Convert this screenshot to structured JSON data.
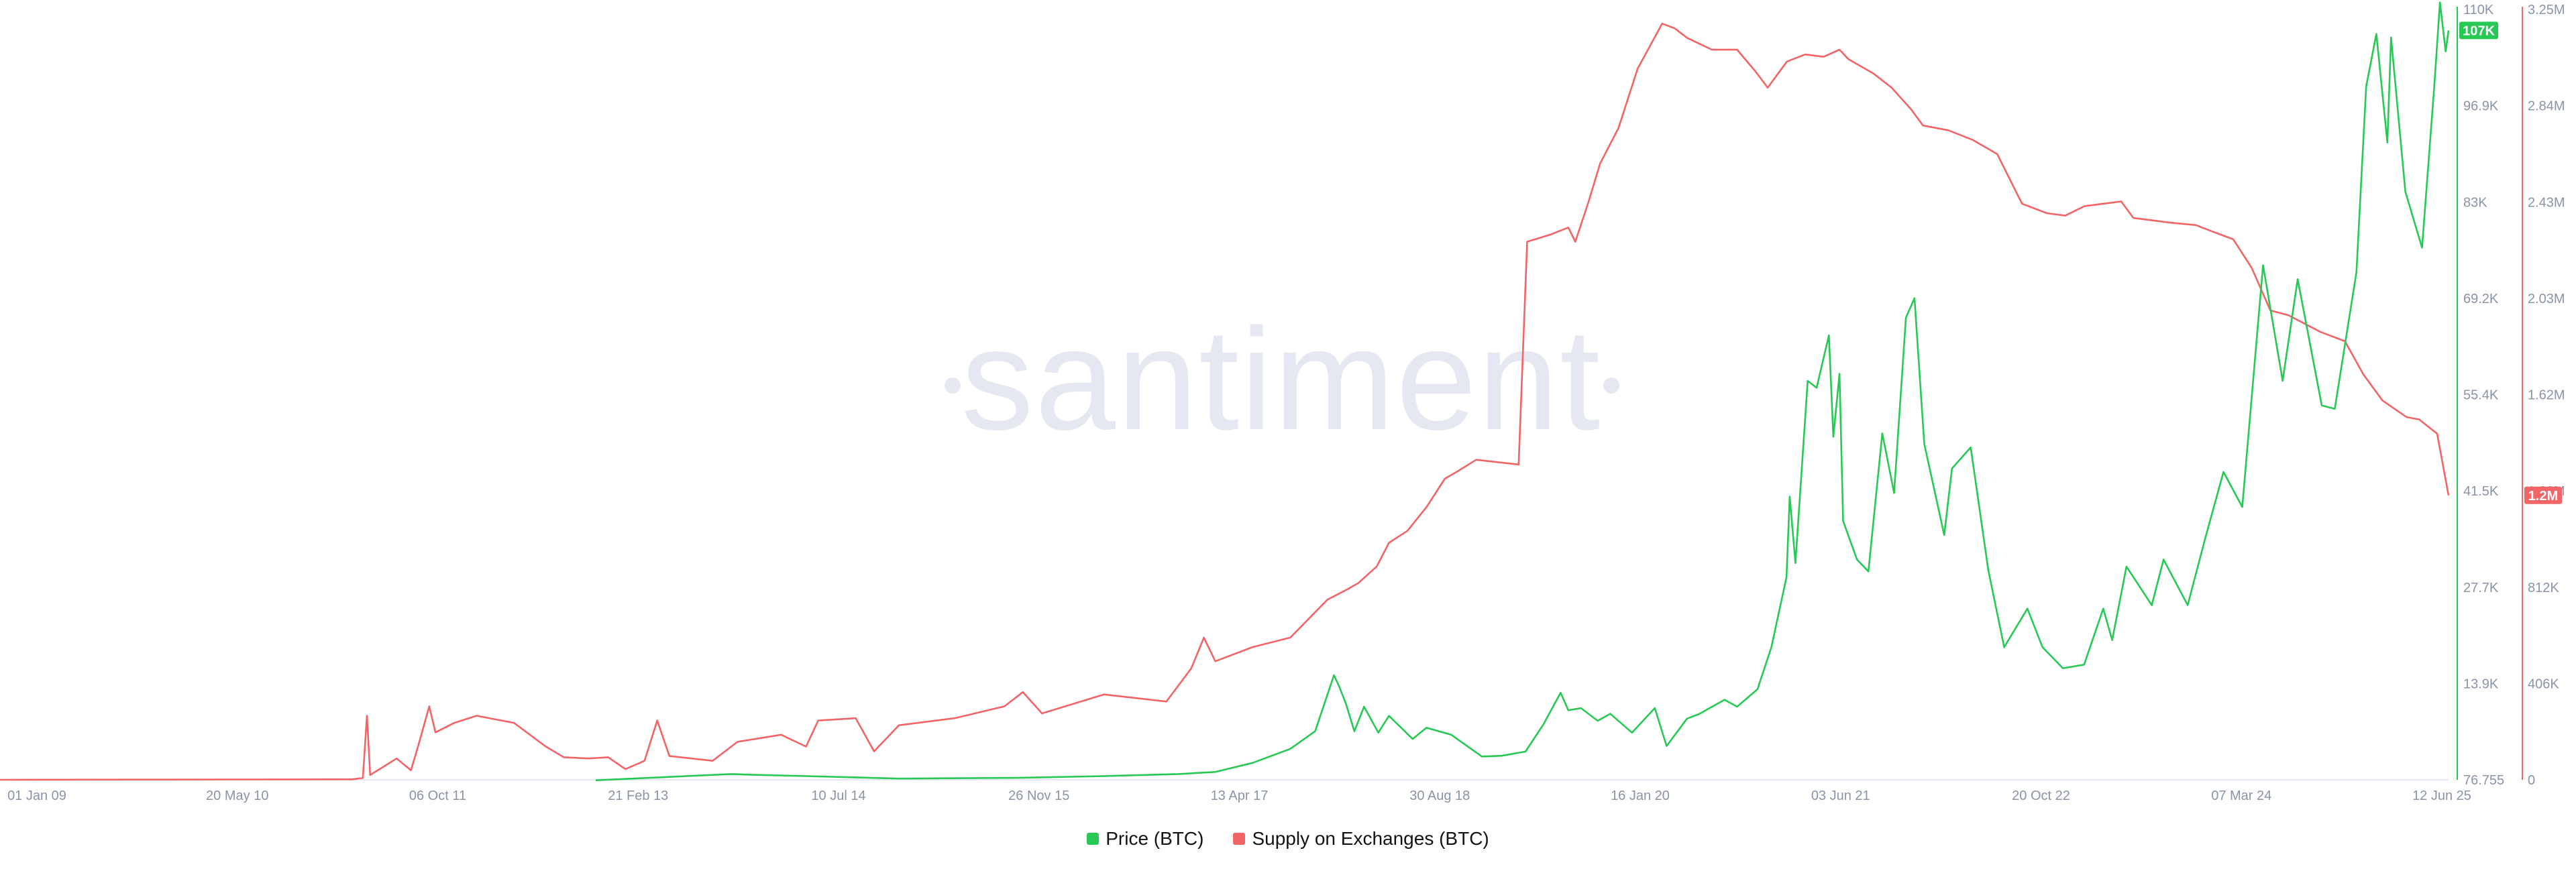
{
  "colors": {
    "price": "#26c953",
    "supply": "#f26466",
    "axis_text": "#8a94a6",
    "watermark": "#e6e8f1"
  },
  "watermark": {
    "text": "santiment"
  },
  "legend": {
    "price": {
      "label": "Price (BTC)",
      "color": "#26c953"
    },
    "supply": {
      "label": "Supply on Exchanges (BTC)",
      "color": "#f26466"
    }
  },
  "chart_data": {
    "type": "line",
    "title": "",
    "grid": false,
    "legend_position": "bottom-center",
    "x_ticks": [
      "01 Jan 09",
      "20 May 10",
      "06 Oct 11",
      "21 Feb 13",
      "10 Jul 14",
      "26 Nov 15",
      "13 Apr 17",
      "30 Aug 18",
      "16 Jan 20",
      "03 Jun 21",
      "20 Oct 22",
      "07 Mar 24",
      "12 Jun 25"
    ],
    "y_left": {
      "label": "Price (BTC)",
      "ticks": [
        "110K",
        "96.9K",
        "83K",
        "69.2K",
        "55.4K",
        "41.5K",
        "27.7K",
        "13.9K",
        "76.755"
      ],
      "range": [
        76.755,
        110000
      ],
      "current_label": "107K"
    },
    "y_right": {
      "label": "Supply on Exchanges (BTC)",
      "ticks": [
        "3.25M",
        "2.84M",
        "2.43M",
        "2.03M",
        "1.62M",
        "1.22M",
        "812K",
        "406K",
        "0"
      ],
      "range": [
        0,
        3250000
      ],
      "current_label": "1.2M"
    },
    "series": [
      {
        "name": "Price (BTC)",
        "axis": "left",
        "points": [
          [
            "2013-01-01",
            13
          ],
          [
            "2013-12-01",
            900
          ],
          [
            "2014-01-15",
            800
          ],
          [
            "2014-06-01",
            600
          ],
          [
            "2015-01-15",
            250
          ],
          [
            "2015-11-01",
            350
          ],
          [
            "2016-06-01",
            600
          ],
          [
            "2016-12-01",
            900
          ],
          [
            "2017-03-01",
            1200
          ],
          [
            "2017-06-01",
            2500
          ],
          [
            "2017-09-01",
            4500
          ],
          [
            "2017-11-01",
            7000
          ],
          [
            "2017-12-17",
            15000
          ],
          [
            "2017-12-29",
            13500
          ],
          [
            "2018-01-15",
            11000
          ],
          [
            "2018-02-05",
            7000
          ],
          [
            "2018-03-01",
            10500
          ],
          [
            "2018-04-05",
            6800
          ],
          [
            "2018-05-01",
            9200
          ],
          [
            "2018-06-28",
            5900
          ],
          [
            "2018-08-01",
            7500
          ],
          [
            "2018-10-01",
            6500
          ],
          [
            "2018-12-15",
            3400
          ],
          [
            "2019-02-01",
            3500
          ],
          [
            "2019-04-01",
            4100
          ],
          [
            "2019-05-15",
            8000
          ],
          [
            "2019-06-26",
            12500
          ],
          [
            "2019-07-15",
            10000
          ],
          [
            "2019-08-15",
            10300
          ],
          [
            "2019-09-25",
            8500
          ],
          [
            "2019-10-26",
            9500
          ],
          [
            "2019-12-18",
            6800
          ],
          [
            "2020-02-12",
            10300
          ],
          [
            "2020-03-12",
            4900
          ],
          [
            "2020-05-01",
            8800
          ],
          [
            "2020-06-01",
            9500
          ],
          [
            "2020-08-01",
            11500
          ],
          [
            "2020-09-01",
            10500
          ],
          [
            "2020-10-21",
            13000
          ],
          [
            "2020-11-24",
            19000
          ],
          [
            "2020-12-31",
            29000
          ],
          [
            "2021-01-08",
            40500
          ],
          [
            "2021-01-22",
            31000
          ],
          [
            "2021-02-21",
            57000
          ],
          [
            "2021-03-15",
            56000
          ],
          [
            "2021-04-14",
            63500
          ],
          [
            "2021-04-25",
            49000
          ],
          [
            "2021-05-10",
            58000
          ],
          [
            "2021-05-19",
            37000
          ],
          [
            "2021-06-22",
            31500
          ],
          [
            "2021-07-20",
            29800
          ],
          [
            "2021-08-23",
            49500
          ],
          [
            "2021-09-21",
            41000
          ],
          [
            "2021-10-20",
            66000
          ],
          [
            "2021-11-10",
            68800
          ],
          [
            "2021-12-04",
            48000
          ],
          [
            "2022-01-22",
            35000
          ],
          [
            "2022-02-10",
            44500
          ],
          [
            "2022-03-28",
            47500
          ],
          [
            "2022-05-10",
            30000
          ],
          [
            "2022-06-18",
            19000
          ],
          [
            "2022-08-14",
            24500
          ],
          [
            "2022-09-20",
            19000
          ],
          [
            "2022-11-09",
            16000
          ],
          [
            "2022-12-31",
            16500
          ],
          [
            "2023-02-16",
            24500
          ],
          [
            "2023-03-10",
            20000
          ],
          [
            "2023-04-14",
            30500
          ],
          [
            "2023-06-15",
            25000
          ],
          [
            "2023-07-14",
            31500
          ],
          [
            "2023-09-11",
            25000
          ],
          [
            "2023-10-24",
            34500
          ],
          [
            "2023-12-08",
            44000
          ],
          [
            "2024-01-23",
            39000
          ],
          [
            "2024-03-14",
            73500
          ],
          [
            "2024-05-01",
            57000
          ],
          [
            "2024-06-07",
            71500
          ],
          [
            "2024-08-05",
            53500
          ],
          [
            "2024-09-06",
            53000
          ],
          [
            "2024-10-29",
            72500
          ],
          [
            "2024-11-22",
            99000
          ],
          [
            "2024-12-17",
            106500
          ],
          [
            "2025-01-13",
            91000
          ],
          [
            "2025-01-22",
            106000
          ],
          [
            "2025-02-26",
            84000
          ],
          [
            "2025-04-08",
            76000
          ],
          [
            "2025-05-08",
            99000
          ],
          [
            "2025-05-22",
            111000
          ],
          [
            "2025-06-05",
            104000
          ],
          [
            "2025-06-12",
            107000
          ]
        ]
      },
      {
        "name": "Supply on Exchanges (BTC)",
        "axis": "right",
        "points": [
          [
            "2009-01-01",
            0
          ],
          [
            "2011-05-15",
            2000
          ],
          [
            "2011-06-10",
            8000
          ],
          [
            "2011-06-20",
            270000
          ],
          [
            "2011-06-28",
            20000
          ],
          [
            "2011-09-01",
            90000
          ],
          [
            "2011-10-06",
            40000
          ],
          [
            "2011-10-25",
            150000
          ],
          [
            "2011-11-20",
            310000
          ],
          [
            "2011-12-05",
            200000
          ],
          [
            "2012-01-20",
            240000
          ],
          [
            "2012-03-15",
            270000
          ],
          [
            "2012-06-15",
            240000
          ],
          [
            "2012-09-01",
            140000
          ],
          [
            "2012-10-15",
            95000
          ],
          [
            "2012-12-15",
            90000
          ],
          [
            "2013-02-01",
            95000
          ],
          [
            "2013-03-15",
            45000
          ],
          [
            "2013-05-01",
            80000
          ],
          [
            "2013-06-01",
            250000
          ],
          [
            "2013-07-01",
            100000
          ],
          [
            "2013-10-15",
            80000
          ],
          [
            "2013-12-15",
            160000
          ],
          [
            "2014-04-01",
            190000
          ],
          [
            "2014-06-01",
            140000
          ],
          [
            "2014-07-01",
            250000
          ],
          [
            "2014-10-01",
            260000
          ],
          [
            "2014-11-15",
            120000
          ],
          [
            "2015-01-15",
            230000
          ],
          [
            "2015-06-01",
            260000
          ],
          [
            "2015-10-01",
            310000
          ],
          [
            "2015-11-15",
            370000
          ],
          [
            "2016-01-01",
            280000
          ],
          [
            "2016-06-01",
            360000
          ],
          [
            "2016-11-01",
            330000
          ],
          [
            "2017-01-01",
            470000
          ],
          [
            "2017-02-01",
            600000
          ],
          [
            "2017-03-01",
            500000
          ],
          [
            "2017-06-01",
            560000
          ],
          [
            "2017-09-01",
            600000
          ],
          [
            "2017-12-01",
            760000
          ],
          [
            "2018-01-15",
            800000
          ],
          [
            "2018-02-15",
            830000
          ],
          [
            "2018-04-01",
            900000
          ],
          [
            "2018-05-01",
            1000000
          ],
          [
            "2018-06-15",
            1050000
          ],
          [
            "2018-08-01",
            1150000
          ],
          [
            "2018-09-15",
            1270000
          ],
          [
            "2018-10-15",
            1300000
          ],
          [
            "2018-12-01",
            1350000
          ],
          [
            "2019-03-15",
            1330000
          ],
          [
            "2019-04-05",
            2270000
          ],
          [
            "2019-06-01",
            2300000
          ],
          [
            "2019-07-15",
            2330000
          ],
          [
            "2019-08-01",
            2270000
          ],
          [
            "2019-09-01",
            2430000
          ],
          [
            "2019-10-01",
            2600000
          ],
          [
            "2019-11-15",
            2750000
          ],
          [
            "2020-01-01",
            3000000
          ],
          [
            "2020-03-01",
            3190000
          ],
          [
            "2020-04-01",
            3170000
          ],
          [
            "2020-05-01",
            3130000
          ],
          [
            "2020-07-01",
            3080000
          ],
          [
            "2020-09-01",
            3080000
          ],
          [
            "2020-10-15",
            2990000
          ],
          [
            "2020-11-15",
            2920000
          ],
          [
            "2021-01-01",
            3030000
          ],
          [
            "2021-02-15",
            3060000
          ],
          [
            "2021-04-01",
            3050000
          ],
          [
            "2021-05-10",
            3080000
          ],
          [
            "2021-06-01",
            3040000
          ],
          [
            "2021-08-01",
            2980000
          ],
          [
            "2021-09-15",
            2920000
          ],
          [
            "2021-11-01",
            2830000
          ],
          [
            "2021-12-01",
            2760000
          ],
          [
            "2022-02-01",
            2740000
          ],
          [
            "2022-04-01",
            2700000
          ],
          [
            "2022-06-01",
            2640000
          ],
          [
            "2022-08-01",
            2430000
          ],
          [
            "2022-10-01",
            2390000
          ],
          [
            "2022-11-15",
            2380000
          ],
          [
            "2023-01-01",
            2420000
          ],
          [
            "2023-04-01",
            2440000
          ],
          [
            "2023-05-01",
            2370000
          ],
          [
            "2023-08-01",
            2350000
          ],
          [
            "2023-10-01",
            2340000
          ],
          [
            "2023-11-15",
            2310000
          ],
          [
            "2024-01-01",
            2280000
          ],
          [
            "2024-02-15",
            2160000
          ],
          [
            "2024-04-01",
            1980000
          ],
          [
            "2024-05-15",
            1960000
          ],
          [
            "2024-08-01",
            1890000
          ],
          [
            "2024-10-01",
            1850000
          ],
          [
            "2024-11-15",
            1710000
          ],
          [
            "2025-01-01",
            1600000
          ],
          [
            "2025-03-01",
            1530000
          ],
          [
            "2025-04-01",
            1520000
          ],
          [
            "2025-05-15",
            1460000
          ],
          [
            "2025-06-12",
            1200000
          ]
        ]
      }
    ]
  }
}
